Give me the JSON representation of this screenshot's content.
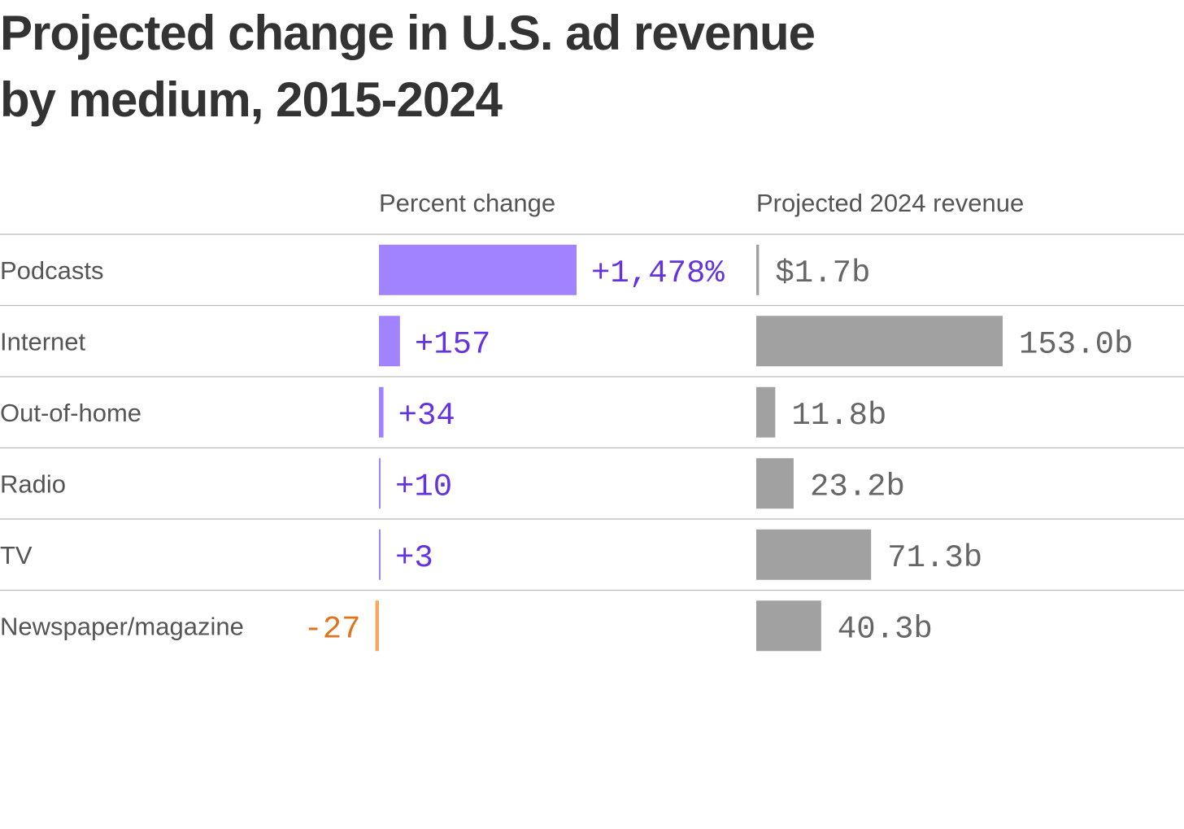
{
  "title_lines": [
    "Projected change in U.S. ad revenue",
    "by medium, 2015-2024"
  ],
  "headers": {
    "percent": "Percent change",
    "revenue": "Projected 2024 revenue"
  },
  "colors": {
    "positive_bar": "#a183ff",
    "positive_text": "#6433e0",
    "negative_bar": "#f4a85e",
    "negative_text": "#e0741a",
    "revenue_bar": "#a0a1a0",
    "revenue_text": "#666666",
    "divider": "#bbbbbb"
  },
  "chart_data": {
    "type": "bar",
    "title": "Projected change in U.S. ad revenue by medium, 2015-2024",
    "categories": [
      "Podcasts",
      "Internet",
      "Out-of-home",
      "Radio",
      "TV",
      "Newspaper/magazine"
    ],
    "series": [
      {
        "name": "Percent change",
        "values": [
          1478,
          157,
          34,
          10,
          3,
          -27
        ],
        "labels": [
          "+1,478%",
          "+157",
          "+34",
          "+10",
          "+3",
          "-27"
        ]
      },
      {
        "name": "Projected 2024 revenue",
        "values": [
          1.7,
          153.0,
          11.8,
          23.2,
          71.3,
          40.3
        ],
        "labels": [
          "$1.7b",
          "153.0b",
          "11.8b",
          "23.2b",
          "71.3b",
          "40.3b"
        ]
      }
    ]
  }
}
